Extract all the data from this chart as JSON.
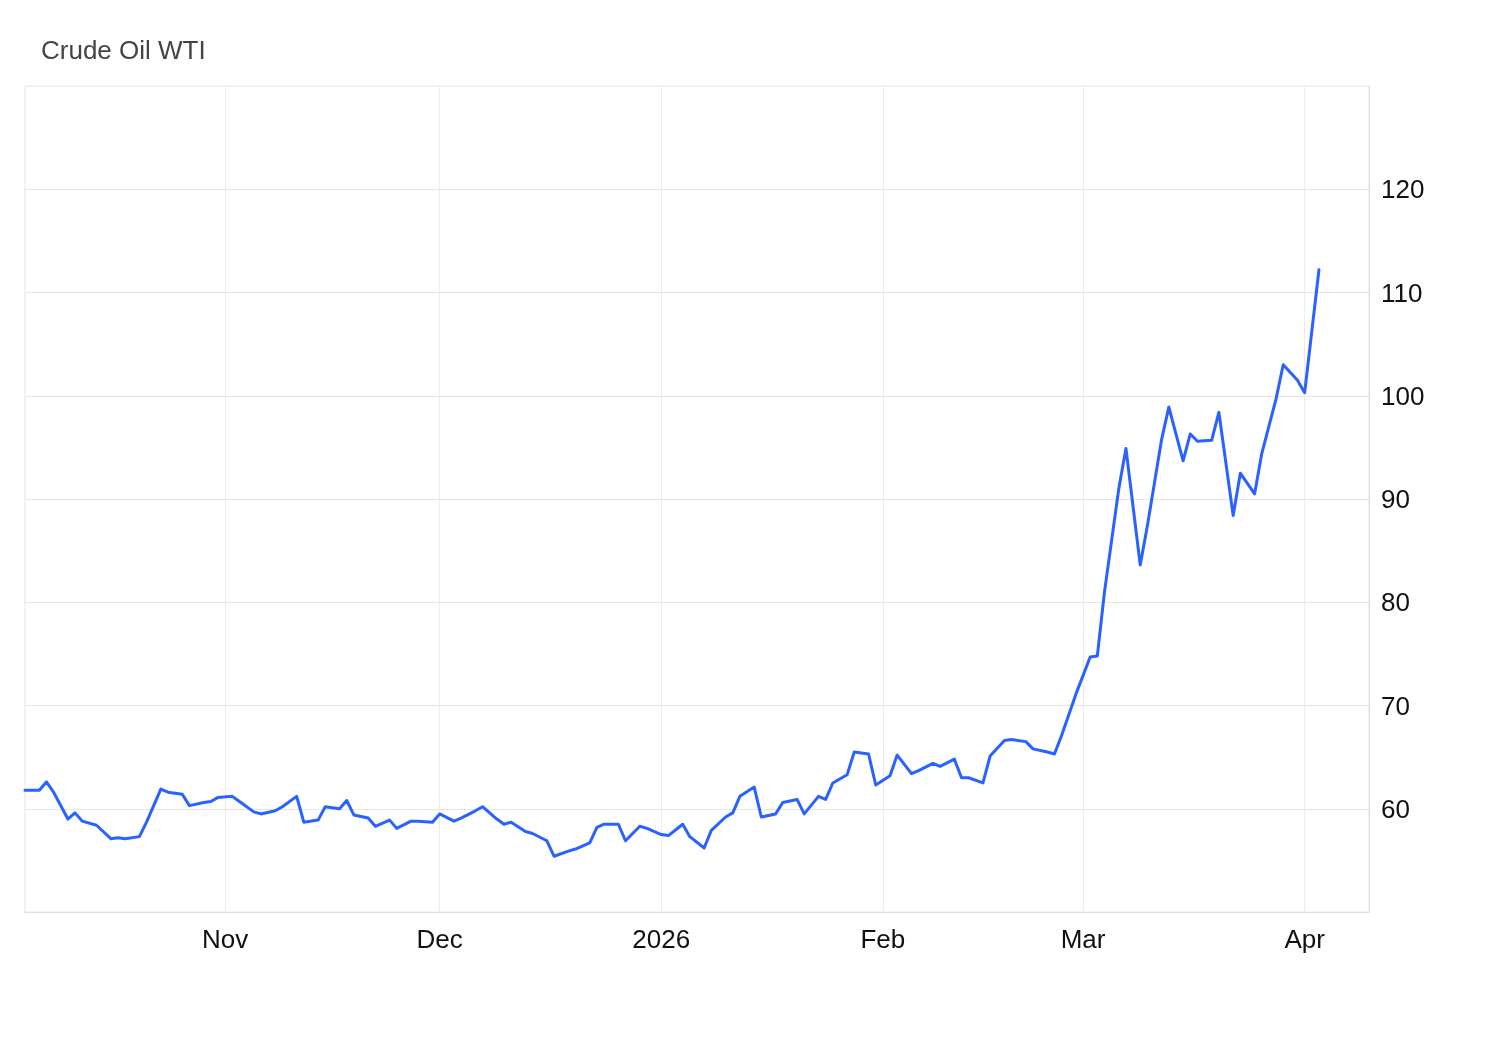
{
  "chart_data": {
    "type": "line",
    "title": "Crude Oil WTI",
    "x": [
      "2025-10-04",
      "2025-10-06",
      "2025-10-07",
      "2025-10-08",
      "2025-10-10",
      "2025-10-11",
      "2025-10-12",
      "2025-10-14",
      "2025-10-16",
      "2025-10-17",
      "2025-10-18",
      "2025-10-20",
      "2025-10-21",
      "2025-10-23",
      "2025-10-24",
      "2025-10-26",
      "2025-10-27",
      "2025-10-29",
      "2025-10-30",
      "2025-10-31",
      "2025-11-02",
      "2025-11-03",
      "2025-11-05",
      "2025-11-06",
      "2025-11-08",
      "2025-11-09",
      "2025-11-11",
      "2025-11-12",
      "2025-11-14",
      "2025-11-15",
      "2025-11-17",
      "2025-11-18",
      "2025-11-19",
      "2025-11-21",
      "2025-11-22",
      "2025-11-24",
      "2025-11-25",
      "2025-11-27",
      "2025-11-28",
      "2025-11-30",
      "2025-12-01",
      "2025-12-03",
      "2025-12-04",
      "2025-12-06",
      "2025-12-07",
      "2025-12-09",
      "2025-12-10",
      "2025-12-11",
      "2025-12-13",
      "2025-12-14",
      "2025-12-16",
      "2025-12-17",
      "2025-12-19",
      "2025-12-20",
      "2025-12-22",
      "2025-12-23",
      "2025-12-24",
      "2025-12-26",
      "2025-12-27",
      "2025-12-29",
      "2025-12-30",
      "2026-01-01",
      "2026-01-02",
      "2026-01-04",
      "2026-01-05",
      "2026-01-07",
      "2026-01-08",
      "2026-01-10",
      "2026-01-11",
      "2026-01-12",
      "2026-01-14",
      "2026-01-15",
      "2026-01-17",
      "2026-01-18",
      "2026-01-20",
      "2026-01-21",
      "2026-01-23",
      "2026-01-24",
      "2026-01-25",
      "2026-01-27",
      "2026-01-28",
      "2026-01-30",
      "2026-01-31",
      "2026-02-02",
      "2026-02-03",
      "2026-02-05",
      "2026-02-06",
      "2026-02-08",
      "2026-02-09",
      "2026-02-11",
      "2026-02-12",
      "2026-02-13",
      "2026-02-15",
      "2026-02-16",
      "2026-02-18",
      "2026-02-19",
      "2026-02-21",
      "2026-02-22",
      "2026-02-24",
      "2026-02-25",
      "2026-02-26",
      "2026-02-28",
      "2026-03-02",
      "2026-03-03",
      "2026-03-04",
      "2026-03-06",
      "2026-03-07",
      "2026-03-09",
      "2026-03-10",
      "2026-03-12",
      "2026-03-13",
      "2026-03-15",
      "2026-03-16",
      "2026-03-17",
      "2026-03-19",
      "2026-03-20",
      "2026-03-22",
      "2026-03-23",
      "2026-03-25",
      "2026-03-26",
      "2026-03-28",
      "2026-03-29",
      "2026-03-31",
      "2026-04-01",
      "2026-04-03"
    ],
    "series": [
      {
        "color": "#2962ff",
        "values": [
          61.8,
          61.8,
          62.6,
          61.6,
          59.0,
          59.6,
          58.8,
          58.4,
          57.1,
          57.2,
          57.1,
          57.3,
          58.7,
          61.9,
          61.6,
          61.4,
          60.3,
          60.6,
          60.7,
          61.1,
          61.2,
          60.7,
          59.7,
          59.5,
          59.8,
          60.2,
          61.2,
          58.7,
          58.9,
          60.2,
          60.0,
          60.8,
          59.4,
          59.1,
          58.3,
          58.9,
          58.1,
          58.8,
          58.8,
          58.7,
          59.5,
          58.8,
          59.1,
          59.8,
          60.2,
          59.0,
          58.5,
          58.7,
          57.8,
          57.6,
          56.9,
          55.4,
          55.9,
          56.1,
          56.7,
          58.2,
          58.5,
          58.5,
          56.9,
          58.3,
          58.1,
          57.5,
          57.4,
          58.5,
          57.3,
          56.2,
          57.9,
          59.2,
          59.6,
          61.2,
          62.1,
          59.2,
          59.5,
          60.6,
          60.9,
          59.5,
          61.2,
          60.9,
          62.5,
          63.3,
          65.5,
          65.3,
          62.3,
          63.2,
          65.2,
          63.4,
          63.7,
          64.4,
          64.1,
          64.8,
          63.0,
          63.0,
          62.5,
          65.1,
          66.6,
          66.7,
          66.5,
          65.8,
          65.5,
          65.3,
          67.1,
          71.1,
          74.7,
          74.8,
          81.0,
          91.0,
          94.9,
          83.6,
          87.4,
          95.8,
          98.9,
          93.7,
          96.3,
          95.6,
          95.7,
          98.4,
          88.4,
          92.5,
          90.5,
          94.4,
          99.7,
          103.0,
          101.5,
          100.3,
          112.2
        ]
      }
    ],
    "xlim": [
      "2025-10-04",
      "2026-04-10"
    ],
    "xticks": [
      {
        "value": "2025-11-01",
        "label": "Nov"
      },
      {
        "value": "2025-12-01",
        "label": "Dec"
      },
      {
        "value": "2026-01-01",
        "label": "2026"
      },
      {
        "value": "2026-02-01",
        "label": "Feb"
      },
      {
        "value": "2026-03-01",
        "label": "Mar"
      },
      {
        "value": "2026-04-01",
        "label": "Apr"
      }
    ],
    "ylim": [
      50,
      130
    ],
    "yticks": [
      60,
      70,
      80,
      90,
      100,
      110,
      120
    ],
    "grid": true,
    "line_style": "solid"
  }
}
